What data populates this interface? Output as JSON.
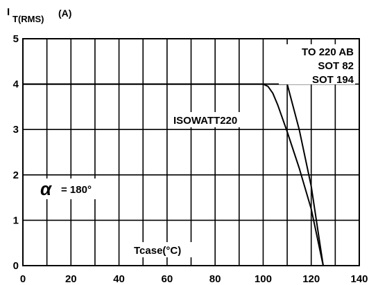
{
  "chart_data": {
    "type": "line",
    "ylabel_main": "I",
    "ylabel_sub": "T(RMS)",
    "ylabel_unit": "(A)",
    "xlabel": "Tcase(°C)",
    "xlim": [
      0,
      140
    ],
    "ylim": [
      0,
      5
    ],
    "x_ticks": [
      "0",
      "20",
      "40",
      "60",
      "80",
      "100",
      "120",
      "140"
    ],
    "y_ticks": [
      "0",
      "1",
      "2",
      "3",
      "4",
      "5"
    ],
    "grid": true,
    "annotations": {
      "alpha_symbol": "α",
      "alpha_value": "= 180°",
      "to220_line1": "TO 220 AB",
      "to220_line2": "SOT 82",
      "to220_line3": "SOT 194",
      "isowatt": "ISOWATT220"
    },
    "series": [
      {
        "name": "ISOWATT220",
        "x": [
          0,
          100,
          102,
          104,
          106,
          110,
          115,
          120,
          125
        ],
        "y": [
          4,
          4,
          3.95,
          3.8,
          3.55,
          2.95,
          2.15,
          1.25,
          0
        ]
      },
      {
        "name": "TO 220 AB / SOT 82 / SOT 194",
        "x": [
          0,
          110,
          115,
          120,
          125
        ],
        "y": [
          4,
          4,
          3.0,
          1.75,
          0
        ]
      }
    ]
  }
}
